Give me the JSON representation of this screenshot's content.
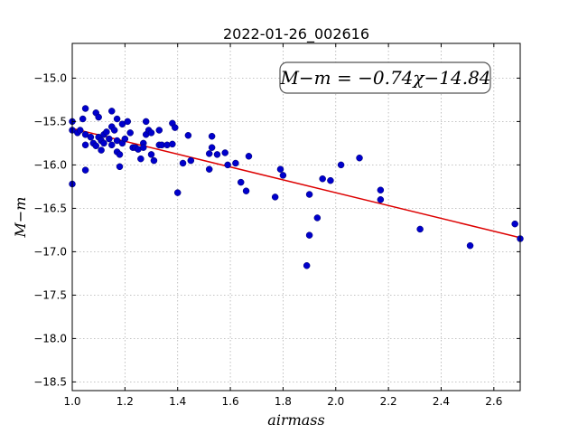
{
  "chart_data": {
    "type": "scatter",
    "title": "2022-01-26_002616",
    "xlabel": "airmass",
    "ylabel": "M−m",
    "xlim": [
      1.0,
      2.7
    ],
    "ylim": [
      -18.6,
      -14.6
    ],
    "y_inverted": true,
    "grid": true,
    "x_ticks": [
      "1.0",
      "1.2",
      "1.4",
      "1.6",
      "1.8",
      "2.0",
      "2.2",
      "2.4",
      "2.6"
    ],
    "y_ticks": [
      "−15.0",
      "−15.5",
      "−16.0",
      "−16.5",
      "−17.0",
      "−17.5",
      "−18.0",
      "−18.5"
    ],
    "fit_text": "M−m = −0.74χ−14.84",
    "fit": {
      "slope": -0.74,
      "intercept": -14.84
    },
    "colors": {
      "points": "#0000cc",
      "fit": "#dd0000"
    },
    "points": [
      [
        1.0,
        -15.5
      ],
      [
        1.0,
        -15.6
      ],
      [
        1.0,
        -16.22
      ],
      [
        1.02,
        -15.63
      ],
      [
        1.03,
        -15.6
      ],
      [
        1.04,
        -15.47
      ],
      [
        1.05,
        -15.35
      ],
      [
        1.05,
        -15.65
      ],
      [
        1.05,
        -15.77
      ],
      [
        1.05,
        -16.06
      ],
      [
        1.07,
        -15.68
      ],
      [
        1.08,
        -15.75
      ],
      [
        1.09,
        -15.4
      ],
      [
        1.09,
        -15.78
      ],
      [
        1.1,
        -15.45
      ],
      [
        1.1,
        -15.68
      ],
      [
        1.11,
        -15.72
      ],
      [
        1.11,
        -15.83
      ],
      [
        1.12,
        -15.65
      ],
      [
        1.12,
        -15.75
      ],
      [
        1.13,
        -15.62
      ],
      [
        1.14,
        -15.7
      ],
      [
        1.15,
        -15.56
      ],
      [
        1.15,
        -15.77
      ],
      [
        1.15,
        -15.38
      ],
      [
        1.16,
        -15.6
      ],
      [
        1.17,
        -15.72
      ],
      [
        1.17,
        -15.85
      ],
      [
        1.17,
        -15.47
      ],
      [
        1.18,
        -15.88
      ],
      [
        1.18,
        -16.02
      ],
      [
        1.19,
        -15.75
      ],
      [
        1.19,
        -15.53
      ],
      [
        1.2,
        -15.7
      ],
      [
        1.21,
        -15.5
      ],
      [
        1.22,
        -15.63
      ],
      [
        1.23,
        -15.8
      ],
      [
        1.24,
        -15.8
      ],
      [
        1.25,
        -15.82
      ],
      [
        1.26,
        -15.93
      ],
      [
        1.27,
        -15.75
      ],
      [
        1.27,
        -15.8
      ],
      [
        1.28,
        -15.5
      ],
      [
        1.28,
        -15.65
      ],
      [
        1.29,
        -15.6
      ],
      [
        1.3,
        -15.63
      ],
      [
        1.3,
        -15.88
      ],
      [
        1.31,
        -15.95
      ],
      [
        1.33,
        -15.6
      ],
      [
        1.33,
        -15.77
      ],
      [
        1.34,
        -15.77
      ],
      [
        1.36,
        -15.77
      ],
      [
        1.38,
        -15.52
      ],
      [
        1.38,
        -15.76
      ],
      [
        1.39,
        -15.57
      ],
      [
        1.4,
        -16.32
      ],
      [
        1.42,
        -15.98
      ],
      [
        1.44,
        -15.66
      ],
      [
        1.45,
        -15.95
      ],
      [
        1.52,
        -16.05
      ],
      [
        1.52,
        -15.87
      ],
      [
        1.53,
        -15.8
      ],
      [
        1.53,
        -15.67
      ],
      [
        1.55,
        -15.88
      ],
      [
        1.58,
        -15.86
      ],
      [
        1.59,
        -16.0
      ],
      [
        1.62,
        -15.98
      ],
      [
        1.64,
        -16.2
      ],
      [
        1.66,
        -16.3
      ],
      [
        1.67,
        -15.9
      ],
      [
        1.77,
        -16.37
      ],
      [
        1.79,
        -16.05
      ],
      [
        1.8,
        -16.12
      ],
      [
        1.89,
        -17.16
      ],
      [
        1.9,
        -16.81
      ],
      [
        1.9,
        -16.34
      ],
      [
        1.93,
        -16.61
      ],
      [
        1.95,
        -16.16
      ],
      [
        1.98,
        -16.18
      ],
      [
        2.02,
        -16.0
      ],
      [
        2.09,
        -15.92
      ],
      [
        2.17,
        -16.29
      ],
      [
        2.17,
        -16.4
      ],
      [
        2.32,
        -16.74
      ],
      [
        2.51,
        -16.93
      ],
      [
        2.68,
        -16.68
      ],
      [
        2.7,
        -16.85
      ]
    ]
  }
}
